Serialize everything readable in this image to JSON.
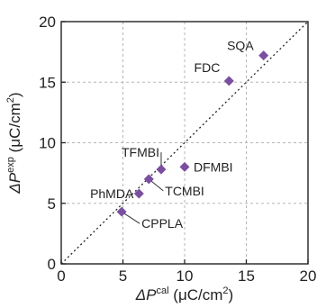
{
  "chart_data": {
    "type": "scatter",
    "xlabel": {
      "prefix": "ΔP",
      "sup": "cal",
      "unit_open": " (μC/cm",
      "unit_sup": "2",
      "unit_close": ")"
    },
    "ylabel": {
      "prefix": "ΔP",
      "sup": "exp",
      "unit_open": " (μC/cm",
      "unit_sup": "2",
      "unit_close": ")"
    },
    "xlim": [
      0,
      20
    ],
    "ylim": [
      0,
      20
    ],
    "xticks": [
      "0",
      "5",
      "10",
      "15",
      "20"
    ],
    "yticks": [
      "0",
      "5",
      "10",
      "15",
      "20"
    ],
    "grid": true,
    "reference_line": "y = x (dotted)",
    "marker": "diamond",
    "marker_color": "#7b4fa0",
    "points": [
      {
        "name": "CPPLA",
        "x": 4.9,
        "y": 4.3
      },
      {
        "name": "PhMDA",
        "x": 6.3,
        "y": 5.8
      },
      {
        "name": "TCMBI",
        "x": 7.1,
        "y": 7.0
      },
      {
        "name": "TFMBI",
        "x": 8.1,
        "y": 7.8
      },
      {
        "name": "DFMBI",
        "x": 10.0,
        "y": 8.0
      },
      {
        "name": "FDC",
        "x": 13.6,
        "y": 15.1
      },
      {
        "name": "SQA",
        "x": 16.4,
        "y": 17.2
      }
    ]
  }
}
